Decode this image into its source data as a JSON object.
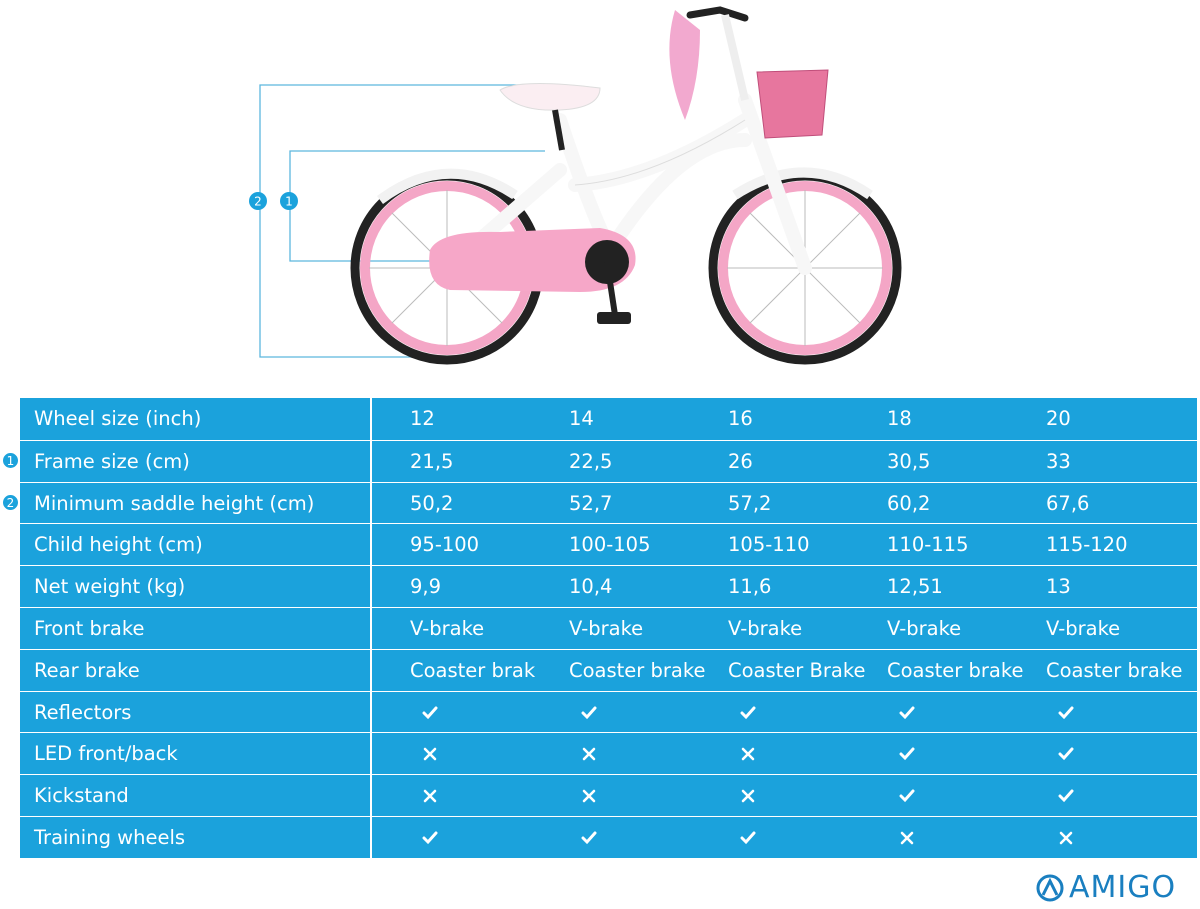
{
  "dimension_markers": [
    "2",
    "1"
  ],
  "table": {
    "rows": [
      {
        "label": "Wheel size (inch)",
        "cells": [
          "12",
          "14",
          "16",
          "18",
          "20"
        ]
      },
      {
        "marker": "1",
        "label": "Frame size (cm)",
        "cells": [
          "21,5",
          "22,5",
          "26",
          "30,5",
          "33"
        ]
      },
      {
        "marker": "2",
        "label": "Minimum saddle height (cm)",
        "cells": [
          "50,2",
          "52,7",
          "57,2",
          "60,2",
          "67,6"
        ]
      },
      {
        "label": "Child height (cm)",
        "cells": [
          "95-100",
          "100-105",
          "105-110",
          "110-115",
          "115-120"
        ]
      },
      {
        "label": "Net weight (kg)",
        "cells": [
          "9,9",
          "10,4",
          "11,6",
          "12,51",
          "13"
        ]
      },
      {
        "label": "Front brake",
        "cells": [
          "V-brake",
          "V-brake",
          "V-brake",
          "V-brake",
          "V-brake"
        ]
      },
      {
        "label": "Rear brake",
        "cells": [
          "Coaster brak",
          "Coaster brake",
          "Coaster Brake",
          "Coaster brake",
          "Coaster brake"
        ]
      },
      {
        "label": "Reflectors",
        "checks": [
          true,
          true,
          true,
          true,
          true
        ]
      },
      {
        "label": "LED front/back",
        "checks": [
          false,
          false,
          false,
          true,
          true
        ]
      },
      {
        "label": "Kickstand",
        "checks": [
          false,
          false,
          false,
          true,
          true
        ]
      },
      {
        "label": "Training wheels",
        "checks": [
          true,
          true,
          true,
          false,
          false
        ]
      }
    ]
  },
  "logo": "AMIGO"
}
